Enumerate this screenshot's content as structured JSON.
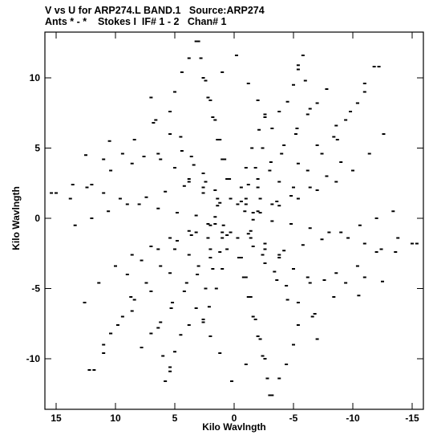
{
  "header": {
    "line1": "V vs U for ARP274.L BAND.1   Source:ARP274",
    "line2": "Ants * - *    Stokes I  IF# 1 - 2   Chan# 1"
  },
  "chart_data": {
    "type": "scatter",
    "title": "V vs U for ARP274.L BAND.1   Source:ARP274",
    "subtitle": "Ants * - *    Stokes I  IF# 1 - 2   Chan# 1",
    "xlabel": "Kilo Wavlngth",
    "ylabel": "Kilo Wavlngth",
    "xlim": [
      16,
      -16
    ],
    "ylim": [
      -13,
      13
    ],
    "x_ticks": [
      15,
      10,
      5,
      0,
      -5,
      -10,
      -15
    ],
    "y_ticks": [
      10,
      5,
      0,
      -5,
      -10
    ],
    "x_tick_labels": [
      "15",
      "10",
      "5",
      "0",
      "-5",
      "-10",
      "-15"
    ],
    "y_tick_labels": [
      "10",
      "5",
      "0",
      "-5",
      "-10"
    ],
    "grid": false,
    "marker_color": "#000000",
    "series": [
      {
        "points": [
          [
            -5.4,
            10.9
          ],
          [
            -5.0,
            9.5
          ],
          [
            -4.5,
            8.3
          ],
          [
            -3.8,
            7.6
          ],
          [
            -2.6,
            7.2
          ],
          [
            -2.1,
            6.3
          ],
          [
            -1.5,
            5.0
          ],
          [
            -1.0,
            3.6
          ],
          [
            -0.6,
            2.2
          ],
          [
            -0.3,
            1.0
          ],
          [
            -7.8,
            9.2
          ],
          [
            -6.4,
            7.8
          ],
          [
            -5.3,
            6.4
          ],
          [
            -4.2,
            5.2
          ],
          [
            -3.1,
            4.0
          ],
          [
            -2.0,
            2.8
          ],
          [
            -1.0,
            1.4
          ],
          [
            -10.4,
            8.2
          ],
          [
            -8.6,
            6.6
          ],
          [
            -7.0,
            5.2
          ],
          [
            -5.4,
            3.9
          ],
          [
            -3.8,
            2.6
          ],
          [
            -2.2,
            1.4
          ],
          [
            -0.9,
            0.5
          ],
          [
            -12.2,
            10.8
          ],
          [
            -11.0,
            9.0
          ],
          [
            -9.8,
            7.6
          ],
          [
            -8.7,
            5.6
          ],
          [
            -9.0,
            4.0
          ],
          [
            -7.8,
            3.0
          ],
          [
            -6.4,
            2.2
          ],
          [
            -4.8,
            1.6
          ],
          [
            -3.2,
            1.0
          ],
          [
            -1.6,
            0.4
          ],
          [
            -13.4,
            0.5
          ],
          [
            -12.0,
            0.0
          ],
          [
            -10.6,
            -0.5
          ],
          [
            -9.0,
            -1.0
          ],
          [
            -7.4,
            -1.5
          ],
          [
            -5.8,
            -1.9
          ],
          [
            -4.2,
            -2.3
          ],
          [
            -2.6,
            -2.2
          ],
          [
            -1.2,
            -1.1
          ],
          [
            -15.4,
            -1.8
          ],
          [
            -13.8,
            -1.4
          ],
          [
            -12.0,
            -2.4
          ],
          [
            -10.4,
            -3.4
          ],
          [
            -8.6,
            -3.9
          ],
          [
            -6.4,
            -4.6
          ],
          [
            -5.0,
            -3.6
          ],
          [
            -3.8,
            -2.6
          ],
          [
            -12.5,
            -4.5
          ],
          [
            -10.5,
            -5.5
          ],
          [
            -8.4,
            -5.6
          ],
          [
            -6.8,
            -6.8
          ],
          [
            -5.4,
            -7.6
          ],
          [
            -4.5,
            -5.8
          ],
          [
            -3.6,
            -4.4
          ],
          [
            -2.6,
            -3.2
          ],
          [
            -1.6,
            -2.0
          ],
          [
            -5.0,
            -9.0
          ],
          [
            -4.4,
            -10.4
          ],
          [
            -3.8,
            -11.4
          ],
          [
            -3.2,
            -12.6
          ],
          [
            -2.6,
            -10.0
          ],
          [
            -2.2,
            -8.6
          ],
          [
            -1.8,
            -7.2
          ],
          [
            -1.4,
            -5.6
          ],
          [
            -1.0,
            -4.2
          ],
          [
            -0.6,
            -2.8
          ],
          [
            -0.3,
            -1.4
          ],
          [
            -1.0,
            -10.4
          ],
          [
            0.2,
            -11.6
          ],
          [
            1.2,
            -9.6
          ],
          [
            2.0,
            -8.4
          ],
          [
            2.6,
            -7.4
          ],
          [
            3.2,
            -6.4
          ],
          [
            2.4,
            -5.0
          ],
          [
            1.8,
            -3.6
          ],
          [
            1.2,
            -2.4
          ],
          [
            0.6,
            -1.2
          ],
          [
            5.8,
            -11.6
          ],
          [
            5.4,
            -10.6
          ],
          [
            6.0,
            -9.8
          ],
          [
            7.0,
            -8.2
          ],
          [
            6.2,
            -7.4
          ],
          [
            5.2,
            -6.0
          ],
          [
            4.0,
            -4.6
          ],
          [
            3.0,
            -3.4
          ],
          [
            2.0,
            -2.2
          ],
          [
            1.0,
            -1.0
          ],
          [
            11.8,
            -10.8
          ],
          [
            11.0,
            -9.6
          ],
          [
            10.4,
            -8.2
          ],
          [
            9.4,
            -7.0
          ],
          [
            8.4,
            -5.8
          ],
          [
            7.4,
            -4.6
          ],
          [
            6.2,
            -3.4
          ],
          [
            5.0,
            -2.2
          ],
          [
            3.6,
            -1.2
          ],
          [
            2.0,
            -0.5
          ],
          [
            12.6,
            -6.0
          ],
          [
            11.4,
            -4.6
          ],
          [
            10.0,
            -3.4
          ],
          [
            8.6,
            -2.6
          ],
          [
            7.0,
            -2.0
          ],
          [
            5.4,
            -1.4
          ],
          [
            3.8,
            -0.9
          ],
          [
            2.2,
            -0.4
          ],
          [
            15.0,
            1.8
          ],
          [
            13.6,
            2.4
          ],
          [
            12.4,
            2.2
          ],
          [
            11.0,
            1.8
          ],
          [
            9.6,
            1.4
          ],
          [
            8.0,
            1.0
          ],
          [
            6.4,
            0.7
          ],
          [
            4.8,
            0.4
          ],
          [
            3.2,
            0.2
          ],
          [
            1.6,
            0.1
          ],
          [
            11.0,
            4.2
          ],
          [
            9.4,
            4.6
          ],
          [
            7.6,
            4.4
          ],
          [
            6.2,
            4.2
          ],
          [
            5.0,
            3.6
          ],
          [
            3.8,
            2.8
          ],
          [
            2.6,
            1.8
          ],
          [
            1.4,
            0.9
          ],
          [
            7.0,
            8.6
          ],
          [
            6.6,
            7.0
          ],
          [
            5.4,
            6.0
          ],
          [
            4.4,
            4.8
          ],
          [
            3.4,
            3.8
          ],
          [
            2.4,
            2.6
          ],
          [
            1.4,
            1.4
          ],
          [
            3.0,
            12.6
          ],
          [
            2.8,
            11.4
          ],
          [
            2.4,
            9.8
          ],
          [
            2.0,
            8.4
          ],
          [
            1.6,
            7.0
          ],
          [
            1.2,
            5.6
          ],
          [
            0.8,
            4.2
          ],
          [
            0.4,
            2.8
          ]
        ]
      }
    ]
  }
}
